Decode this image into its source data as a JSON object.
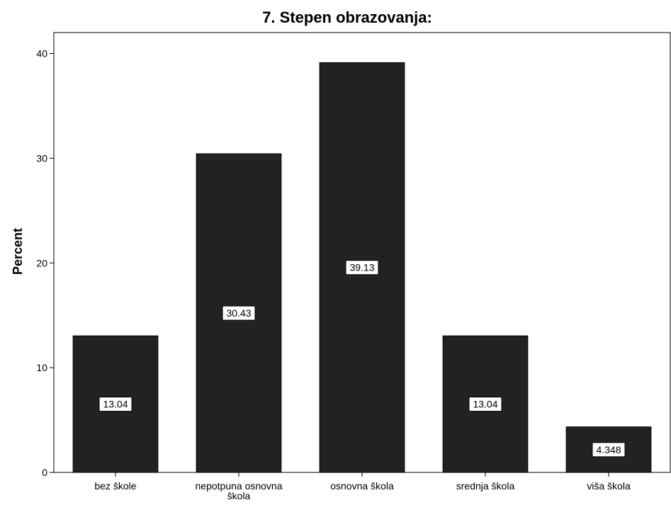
{
  "chart_data": {
    "type": "bar",
    "title": "7. Stepen obrazovanja:",
    "xlabel": "",
    "ylabel": "Percent",
    "categories": [
      "bez škole",
      "nepotpuna osnovna škola",
      "osnovna škola",
      "srednja škola",
      "viša škola"
    ],
    "category_label_lines": [
      [
        "bez škole"
      ],
      [
        "nepotpuna osnovna",
        "škola"
      ],
      [
        "osnovna škola"
      ],
      [
        "srednja škola"
      ],
      [
        "viša škola"
      ]
    ],
    "values": [
      13.04,
      30.43,
      39.13,
      13.04,
      4.348
    ],
    "data_labels": [
      "13.04",
      "30.43",
      "39.13",
      "13.04",
      "4.348"
    ],
    "ylim": [
      0,
      42
    ],
    "yticks": [
      0,
      10,
      20,
      30,
      40
    ],
    "grid": false,
    "bar_color": "#222222"
  }
}
